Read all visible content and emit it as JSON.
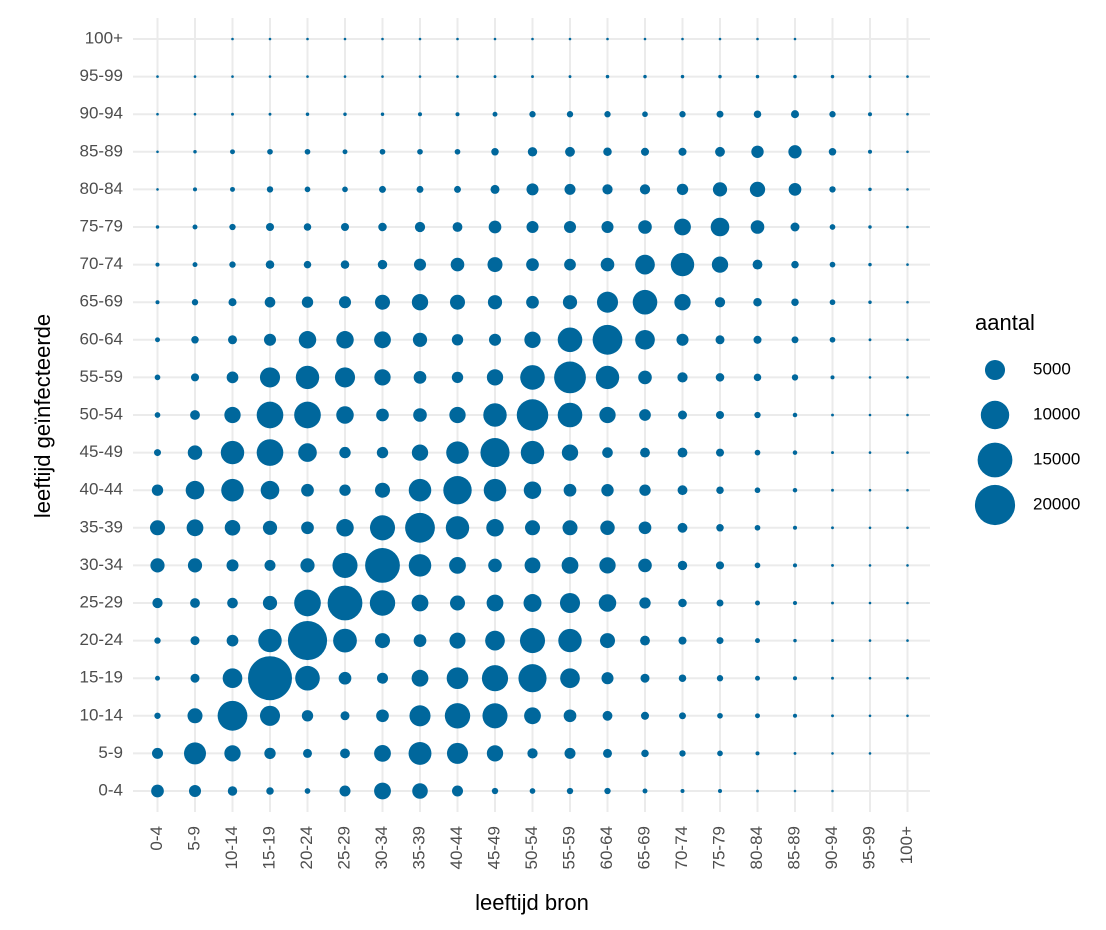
{
  "chart_data": {
    "type": "scatter",
    "subtype": "bubble",
    "xlabel": "leeftijd bron",
    "ylabel": "leeftijd geïnfecteerde",
    "categories": [
      "0-4",
      "5-9",
      "10-14",
      "15-19",
      "20-24",
      "25-29",
      "30-34",
      "35-39",
      "40-44",
      "45-49",
      "50-54",
      "55-59",
      "60-64",
      "65-69",
      "70-74",
      "75-79",
      "80-84",
      "85-89",
      "90-94",
      "95-99",
      "100+"
    ],
    "size_legend": {
      "title": "aantal",
      "entries": [
        {
          "label": "5000",
          "value": 5000
        },
        {
          "label": "10000",
          "value": 10000
        },
        {
          "label": "15000",
          "value": 15000
        },
        {
          "label": "20000",
          "value": 20000
        }
      ]
    },
    "max_value": 24000,
    "grid": true,
    "legend_position": "right",
    "color": "#00679c",
    "matrix_note": "rows = leeftijd geïnfecteerde (0-4 upward to 100+), columns = leeftijd bron (0-4 to 100+)",
    "values": [
      [
        2000,
        1800,
        1100,
        700,
        400,
        1500,
        3500,
        3000,
        1500,
        500,
        400,
        500,
        500,
        300,
        200,
        200,
        100,
        50,
        20,
        0,
        0
      ],
      [
        1500,
        6000,
        3300,
        1600,
        1000,
        1200,
        3500,
        6500,
        5500,
        3300,
        1300,
        1500,
        1000,
        700,
        500,
        400,
        200,
        100,
        30,
        20,
        0
      ],
      [
        500,
        2800,
        11000,
        5000,
        1600,
        1000,
        2000,
        5500,
        8000,
        7800,
        3500,
        2000,
        1200,
        800,
        600,
        400,
        300,
        200,
        100,
        30,
        20
      ],
      [
        300,
        1000,
        4800,
        24000,
        7500,
        2000,
        1500,
        3500,
        5800,
        8500,
        9800,
        4800,
        1800,
        1000,
        700,
        500,
        300,
        200,
        100,
        40,
        20
      ],
      [
        500,
        1000,
        1700,
        6800,
        19000,
        7000,
        2800,
        2000,
        3200,
        4800,
        7800,
        6800,
        2800,
        1200,
        800,
        600,
        300,
        150,
        100,
        50,
        20
      ],
      [
        1300,
        1200,
        1400,
        2500,
        8800,
        15000,
        8000,
        3500,
        2800,
        3500,
        4000,
        5000,
        3800,
        1600,
        900,
        600,
        300,
        200,
        100,
        50,
        20
      ],
      [
        2500,
        2500,
        1800,
        1500,
        2500,
        7800,
        15000,
        6300,
        3500,
        2300,
        3100,
        3500,
        3300,
        2300,
        1100,
        800,
        400,
        200,
        100,
        50,
        20
      ],
      [
        2800,
        3500,
        3000,
        2500,
        2000,
        3800,
        7800,
        11000,
        6800,
        3800,
        2800,
        2800,
        2600,
        2000,
        1200,
        700,
        400,
        200,
        100,
        40,
        20
      ],
      [
        1600,
        4300,
        6300,
        4300,
        2000,
        1600,
        2800,
        6300,
        10000,
        6300,
        3800,
        2000,
        1900,
        1600,
        1200,
        700,
        400,
        250,
        100,
        50,
        20
      ],
      [
        600,
        2600,
        6800,
        8800,
        4300,
        1600,
        1600,
        3300,
        6300,
        10500,
        6800,
        3300,
        1400,
        1200,
        1200,
        800,
        400,
        250,
        100,
        50,
        20
      ],
      [
        400,
        1200,
        3300,
        8800,
        8800,
        3800,
        2000,
        2300,
        3300,
        6800,
        12300,
        7500,
        3300,
        1700,
        1000,
        800,
        500,
        250,
        100,
        50,
        20
      ],
      [
        400,
        800,
        1700,
        5000,
        6800,
        5000,
        3300,
        2000,
        1600,
        3300,
        7500,
        12500,
        6800,
        2300,
        1300,
        900,
        700,
        500,
        200,
        60,
        20
      ],
      [
        300,
        700,
        1000,
        1800,
        3800,
        3800,
        3500,
        2500,
        1600,
        1800,
        3300,
        7500,
        11000,
        4800,
        1800,
        1000,
        800,
        600,
        400,
        100,
        20
      ],
      [
        200,
        500,
        800,
        1400,
        1600,
        1800,
        2800,
        3300,
        2800,
        2500,
        2000,
        2500,
        5500,
        7500,
        3300,
        1300,
        900,
        700,
        400,
        150,
        30
      ],
      [
        200,
        300,
        500,
        900,
        700,
        900,
        1100,
        1800,
        2300,
        2800,
        2000,
        1700,
        2300,
        4800,
        6800,
        3300,
        1200,
        700,
        400,
        150,
        30
      ],
      [
        150,
        300,
        500,
        800,
        700,
        800,
        900,
        1300,
        1200,
        2000,
        1800,
        1800,
        1800,
        2300,
        3500,
        4300,
        2300,
        1000,
        400,
        150,
        30
      ],
      [
        80,
        200,
        300,
        500,
        400,
        400,
        600,
        600,
        600,
        1000,
        1800,
        1500,
        1300,
        1300,
        1600,
        2500,
        2900,
        2000,
        500,
        150,
        40
      ],
      [
        50,
        150,
        300,
        400,
        400,
        300,
        400,
        400,
        400,
        700,
        1100,
        1200,
        900,
        800,
        800,
        1200,
        1900,
        2200,
        700,
        200,
        50
      ],
      [
        30,
        70,
        100,
        100,
        150,
        150,
        150,
        200,
        200,
        300,
        500,
        500,
        500,
        400,
        500,
        600,
        700,
        800,
        500,
        200,
        30
      ],
      [
        50,
        30,
        40,
        40,
        50,
        60,
        80,
        60,
        60,
        100,
        100,
        100,
        150,
        150,
        150,
        150,
        150,
        150,
        150,
        100,
        10
      ],
      [
        0,
        0,
        50,
        50,
        50,
        60,
        80,
        70,
        60,
        60,
        60,
        60,
        80,
        80,
        80,
        80,
        60,
        60,
        0,
        0,
        0
      ]
    ]
  }
}
